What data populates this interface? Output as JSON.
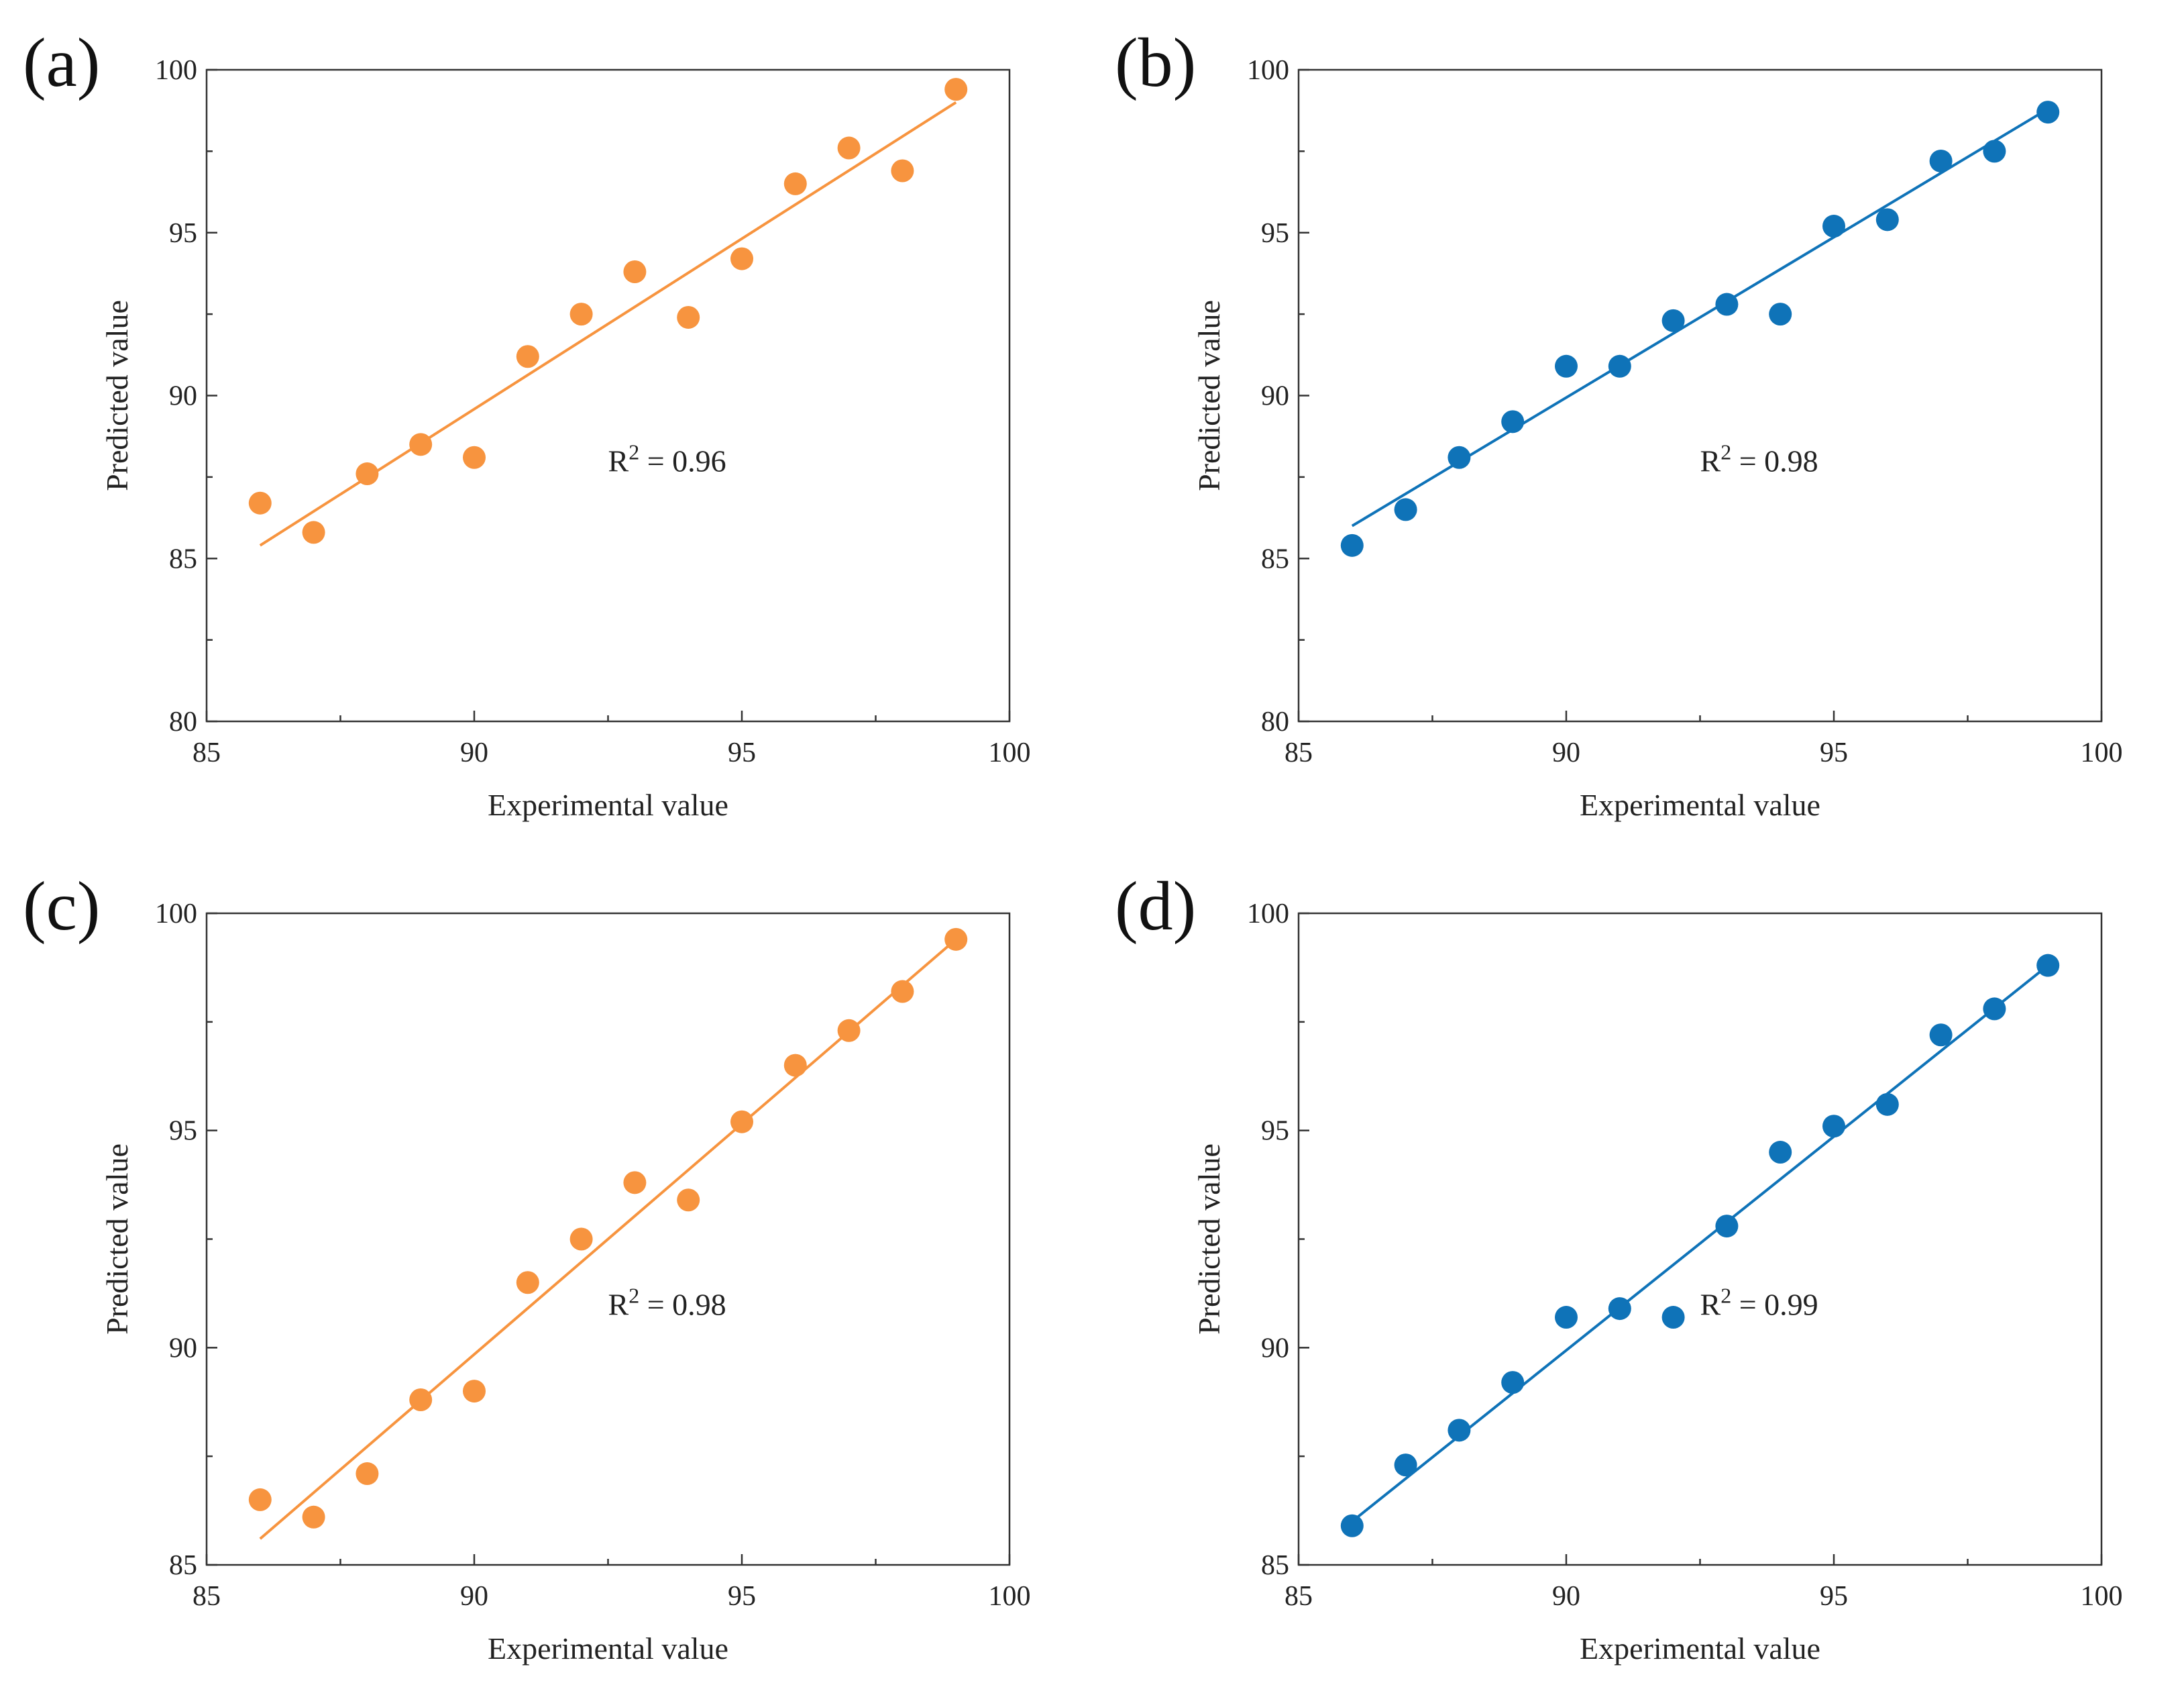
{
  "chart_data": [
    {
      "type": "scatter",
      "panel_label": "(a)",
      "xlabel": "Experimental value",
      "ylabel": "Predicted value",
      "xlim": [
        85,
        100
      ],
      "ylim": [
        80,
        100
      ],
      "xticks": [
        "85",
        "90",
        "95",
        "100"
      ],
      "yticks": [
        "80",
        "85",
        "90",
        "95",
        "100"
      ],
      "color": "#F7943F",
      "r2_text": "R",
      "r2_sup": "2",
      "r2_value": " = 0.96",
      "x": [
        86,
        87,
        88,
        89,
        90,
        91,
        92,
        93,
        94,
        95,
        96,
        97,
        98,
        99
      ],
      "y": [
        86.7,
        85.8,
        87.6,
        88.5,
        88.1,
        91.2,
        92.5,
        93.8,
        92.4,
        94.2,
        96.5,
        97.6,
        96.9,
        99.4
      ],
      "fit": {
        "x": [
          86,
          99
        ],
        "y": [
          85.4,
          99.0
        ]
      }
    },
    {
      "type": "scatter",
      "panel_label": "(b)",
      "xlabel": "Experimental value",
      "ylabel": "Predicted value",
      "xlim": [
        85,
        100
      ],
      "ylim": [
        80,
        100
      ],
      "xticks": [
        "85",
        "90",
        "95",
        "100"
      ],
      "yticks": [
        "80",
        "85",
        "90",
        "95",
        "100"
      ],
      "color": "#0F73B8",
      "r2_text": "R",
      "r2_sup": "2",
      "r2_value": " = 0.98",
      "x": [
        86,
        87,
        88,
        89,
        90,
        91,
        92,
        93,
        94,
        95,
        96,
        97,
        98,
        99
      ],
      "y": [
        85.4,
        86.5,
        88.1,
        89.2,
        90.9,
        90.9,
        92.3,
        92.8,
        92.5,
        95.2,
        95.4,
        97.2,
        97.5,
        98.7
      ],
      "fit": {
        "x": [
          86,
          99
        ],
        "y": [
          86.0,
          98.8
        ]
      }
    },
    {
      "type": "scatter",
      "panel_label": "(c)",
      "xlabel": "Experimental value",
      "ylabel": "Predicted value",
      "xlim": [
        85,
        100
      ],
      "ylim": [
        85,
        100
      ],
      "xticks": [
        "85",
        "90",
        "95",
        "100"
      ],
      "yticks": [
        "85",
        "90",
        "95",
        "100"
      ],
      "color": "#F7943F",
      "r2_text": "R",
      "r2_sup": "2",
      "r2_value": " = 0.98",
      "x": [
        86,
        87,
        88,
        89,
        90,
        91,
        92,
        93,
        94,
        95,
        96,
        97,
        98,
        99
      ],
      "y": [
        86.5,
        86.1,
        87.1,
        88.8,
        89.0,
        91.5,
        92.5,
        93.8,
        93.4,
        95.2,
        96.5,
        97.3,
        98.2,
        99.4
      ],
      "fit": {
        "x": [
          86,
          99
        ],
        "y": [
          85.6,
          99.4
        ]
      }
    },
    {
      "type": "scatter",
      "panel_label": "(d)",
      "xlabel": "Experimental value",
      "ylabel": "Predicted value",
      "xlim": [
        85,
        100
      ],
      "ylim": [
        85,
        100
      ],
      "xticks": [
        "85",
        "90",
        "95",
        "100"
      ],
      "yticks": [
        "85",
        "90",
        "95",
        "100"
      ],
      "color": "#0F73B8",
      "r2_text": "R",
      "r2_sup": "2",
      "r2_value": " = 0.99",
      "x": [
        86,
        87,
        88,
        89,
        90,
        91,
        92,
        93,
        94,
        95,
        96,
        97,
        98,
        99
      ],
      "y": [
        85.9,
        87.3,
        88.1,
        89.2,
        90.7,
        90.9,
        90.7,
        92.8,
        94.5,
        95.1,
        95.6,
        97.2,
        97.8,
        98.8
      ],
      "fit": {
        "x": [
          86,
          99
        ],
        "y": [
          86.0,
          98.8
        ]
      }
    }
  ]
}
